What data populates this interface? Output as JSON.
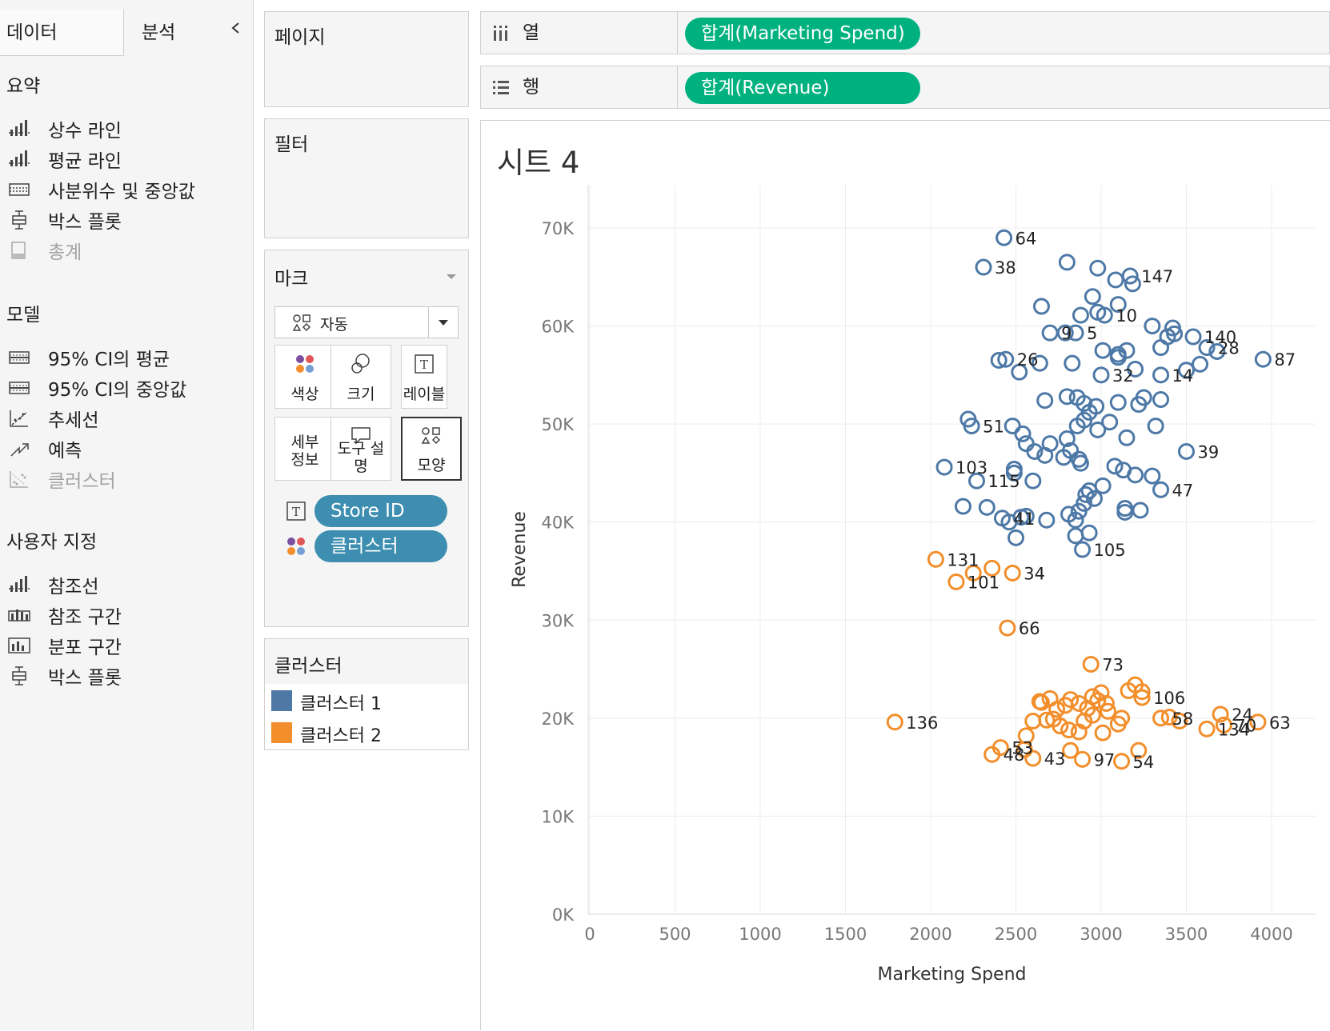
{
  "left_pane": {
    "tab_data": "데이터",
    "tab_analysis": "분석",
    "sections": [
      {
        "title": "요약",
        "items": [
          {
            "label": "상수 라인",
            "icon": "bar-line-icon",
            "enabled": true
          },
          {
            "label": "평균 라인",
            "icon": "bar-line-icon",
            "enabled": true
          },
          {
            "label": "사분위수 및 중앙값",
            "icon": "quartile-icon",
            "enabled": true
          },
          {
            "label": "박스 플롯",
            "icon": "box-plot-icon",
            "enabled": true
          },
          {
            "label": "총계",
            "icon": "totals-icon",
            "enabled": false
          }
        ]
      },
      {
        "title": "모델",
        "items": [
          {
            "label": "95% CI의 평균",
            "icon": "ci-icon",
            "enabled": true
          },
          {
            "label": "95% CI의 중앙값",
            "icon": "ci-icon",
            "enabled": true
          },
          {
            "label": "추세선",
            "icon": "trend-line-icon",
            "enabled": true
          },
          {
            "label": "예측",
            "icon": "forecast-icon",
            "enabled": true
          },
          {
            "label": "클러스터",
            "icon": "cluster-icon",
            "enabled": false
          }
        ]
      },
      {
        "title": "사용자 지정",
        "items": [
          {
            "label": "참조선",
            "icon": "reference-line-icon",
            "enabled": true
          },
          {
            "label": "참조 구간",
            "icon": "reference-band-icon",
            "enabled": true
          },
          {
            "label": "분포 구간",
            "icon": "distribution-band-icon",
            "enabled": true
          },
          {
            "label": "박스 플롯",
            "icon": "box-plot-icon",
            "enabled": true
          }
        ]
      }
    ]
  },
  "cards": {
    "pages_title": "페이지",
    "filters_title": "필터",
    "marks": {
      "title": "마크",
      "mark_type": "자동",
      "buttons": [
        {
          "label": "색상",
          "icon": "color-icon"
        },
        {
          "label": "크기",
          "icon": "size-icon"
        },
        {
          "label": "레이블",
          "icon": "label-icon"
        },
        {
          "label": "세부\n정보",
          "icon": "detail-icon"
        },
        {
          "label": "도구 설명",
          "icon": "tooltip-icon"
        },
        {
          "label": "모양",
          "icon": "shape-icon"
        }
      ],
      "pills": [
        {
          "label": "Store ID",
          "icon": "label-icon"
        },
        {
          "label": "클러스터",
          "icon": "color-icon"
        }
      ]
    },
    "legend": {
      "title": "클러스터",
      "items": [
        {
          "label": "클러스터 1",
          "color": "#4e79a7"
        },
        {
          "label": "클러스터 2",
          "color": "#f28e2b"
        }
      ]
    }
  },
  "shelves": {
    "columns_label": "열",
    "columns_pill": "합계(Marketing Spend)",
    "rows_label": "행",
    "rows_pill": "합계(Revenue)",
    "pill_color": "#00b180"
  },
  "sheet": {
    "title": "시트 4"
  },
  "chart_data": {
    "type": "scatter",
    "xlabel": "Marketing Spend",
    "ylabel": "Revenue",
    "xlim": [
      0,
      4000
    ],
    "ylim": [
      0,
      70000
    ],
    "x_ticks": [
      "0",
      "500",
      "1000",
      "1500",
      "2000",
      "2500",
      "3000",
      "3500",
      "4000"
    ],
    "y_ticks": [
      "0K",
      "10K",
      "20K",
      "30K",
      "40K",
      "50K",
      "60K",
      "70K"
    ],
    "grid": true,
    "series": [
      {
        "name": "클러스터 1",
        "color": "#4e79a7",
        "points": [
          {
            "x": 2430,
            "y": 69000,
            "label": "64"
          },
          {
            "x": 2800,
            "y": 66500
          },
          {
            "x": 2980,
            "y": 65900
          },
          {
            "x": 3170,
            "y": 65100,
            "label": "147"
          },
          {
            "x": 2310,
            "y": 66000,
            "label": "38"
          },
          {
            "x": 3085,
            "y": 64700
          },
          {
            "x": 3185,
            "y": 64300
          },
          {
            "x": 2950,
            "y": 63000
          },
          {
            "x": 2980,
            "y": 61400
          },
          {
            "x": 3020,
            "y": 61100,
            "label": "10"
          },
          {
            "x": 3100,
            "y": 62200
          },
          {
            "x": 2650,
            "y": 62000
          },
          {
            "x": 2790,
            "y": 59300
          },
          {
            "x": 2880,
            "y": 61100
          },
          {
            "x": 3300,
            "y": 60000
          },
          {
            "x": 3420,
            "y": 59800
          },
          {
            "x": 3540,
            "y": 58900,
            "label": "140"
          },
          {
            "x": 3430,
            "y": 59200
          },
          {
            "x": 3390,
            "y": 58900
          },
          {
            "x": 3950,
            "y": 56600,
            "label": "87"
          },
          {
            "x": 3680,
            "y": 57400
          },
          {
            "x": 3580,
            "y": 56100
          },
          {
            "x": 3350,
            "y": 57800
          },
          {
            "x": 3150,
            "y": 57500
          },
          {
            "x": 3010,
            "y": 57500
          },
          {
            "x": 3100,
            "y": 57100
          },
          {
            "x": 3100,
            "y": 56800
          },
          {
            "x": 2400,
            "y": 56500
          },
          {
            "x": 2520,
            "y": 55300
          },
          {
            "x": 2640,
            "y": 56200
          },
          {
            "x": 2830,
            "y": 56200
          },
          {
            "x": 3200,
            "y": 55600
          },
          {
            "x": 3500,
            "y": 55500
          },
          {
            "x": 3000,
            "y": 55000,
            "label": "32"
          },
          {
            "x": 2670,
            "y": 52400
          },
          {
            "x": 2800,
            "y": 52800
          },
          {
            "x": 2860,
            "y": 52700
          },
          {
            "x": 2900,
            "y": 52100
          },
          {
            "x": 2970,
            "y": 51800
          },
          {
            "x": 3100,
            "y": 52200
          },
          {
            "x": 3250,
            "y": 52700
          },
          {
            "x": 3350,
            "y": 52500
          },
          {
            "x": 2220,
            "y": 50500
          },
          {
            "x": 2240,
            "y": 49800,
            "label": "51"
          },
          {
            "x": 2480,
            "y": 49800
          },
          {
            "x": 2540,
            "y": 49000
          },
          {
            "x": 2560,
            "y": 48000
          },
          {
            "x": 2610,
            "y": 47200
          },
          {
            "x": 2670,
            "y": 46800
          },
          {
            "x": 2700,
            "y": 48000
          },
          {
            "x": 2800,
            "y": 48500
          },
          {
            "x": 2860,
            "y": 49800
          },
          {
            "x": 2900,
            "y": 50400
          },
          {
            "x": 2930,
            "y": 51200
          },
          {
            "x": 2980,
            "y": 49400
          },
          {
            "x": 3050,
            "y": 50200
          },
          {
            "x": 3150,
            "y": 48600
          },
          {
            "x": 3320,
            "y": 49800
          },
          {
            "x": 3080,
            "y": 45700
          },
          {
            "x": 3130,
            "y": 45300
          },
          {
            "x": 2080,
            "y": 45600,
            "label": "103"
          },
          {
            "x": 2270,
            "y": 44200,
            "label": "115"
          },
          {
            "x": 2490,
            "y": 45400
          },
          {
            "x": 2490,
            "y": 45000
          },
          {
            "x": 2600,
            "y": 44200
          },
          {
            "x": 2780,
            "y": 46600
          },
          {
            "x": 2820,
            "y": 47300
          },
          {
            "x": 2870,
            "y": 46400
          },
          {
            "x": 2880,
            "y": 46000
          },
          {
            "x": 3200,
            "y": 44800
          },
          {
            "x": 3300,
            "y": 44700
          },
          {
            "x": 3350,
            "y": 43300,
            "label": "47"
          },
          {
            "x": 3500,
            "y": 47200,
            "label": "39"
          },
          {
            "x": 2910,
            "y": 42800
          },
          {
            "x": 2930,
            "y": 43200
          },
          {
            "x": 2960,
            "y": 42400
          },
          {
            "x": 3010,
            "y": 43700
          },
          {
            "x": 2900,
            "y": 41900
          },
          {
            "x": 2870,
            "y": 41100
          },
          {
            "x": 2850,
            "y": 40200
          },
          {
            "x": 2810,
            "y": 40800
          },
          {
            "x": 3140,
            "y": 41400
          },
          {
            "x": 3140,
            "y": 41000
          },
          {
            "x": 3230,
            "y": 41200
          },
          {
            "x": 2190,
            "y": 41600
          },
          {
            "x": 2330,
            "y": 41500
          },
          {
            "x": 2420,
            "y": 40400,
            "label": "41"
          },
          {
            "x": 2460,
            "y": 40000
          },
          {
            "x": 2530,
            "y": 40500
          },
          {
            "x": 2560,
            "y": 40600
          },
          {
            "x": 2680,
            "y": 40200
          },
          {
            "x": 2500,
            "y": 38400
          },
          {
            "x": 2850,
            "y": 38600
          },
          {
            "x": 2930,
            "y": 38900
          },
          {
            "x": 2890,
            "y": 37200,
            "label": "105"
          },
          {
            "x": 3220,
            "y": 52000
          },
          {
            "x": 3350,
            "y": 55000,
            "label": "14"
          },
          {
            "x": 2700,
            "y": 59300,
            "label": "9"
          },
          {
            "x": 2850,
            "y": 59300,
            "label": "5"
          },
          {
            "x": 2440,
            "y": 56600,
            "label": "26"
          },
          {
            "x": 3620,
            "y": 57800,
            "label": "28"
          }
        ]
      },
      {
        "name": "클러스터 2",
        "color": "#f28e2b",
        "points": [
          {
            "x": 2030,
            "y": 36200,
            "label": "131"
          },
          {
            "x": 2150,
            "y": 33900,
            "label": "101"
          },
          {
            "x": 2250,
            "y": 34800
          },
          {
            "x": 2360,
            "y": 35300
          },
          {
            "x": 2480,
            "y": 34800,
            "label": "34"
          },
          {
            "x": 2450,
            "y": 29200,
            "label": "66"
          },
          {
            "x": 2940,
            "y": 25500,
            "label": "73"
          },
          {
            "x": 1790,
            "y": 19600,
            "label": "136"
          },
          {
            "x": 2360,
            "y": 16300,
            "label": "48"
          },
          {
            "x": 2410,
            "y": 17000,
            "label": "53"
          },
          {
            "x": 2550,
            "y": 16800
          },
          {
            "x": 2600,
            "y": 15900,
            "label": "43"
          },
          {
            "x": 2820,
            "y": 16700
          },
          {
            "x": 2890,
            "y": 15800,
            "label": "97"
          },
          {
            "x": 3120,
            "y": 15600,
            "label": "54"
          },
          {
            "x": 3220,
            "y": 16700
          },
          {
            "x": 2560,
            "y": 18200
          },
          {
            "x": 2600,
            "y": 19700
          },
          {
            "x": 2640,
            "y": 21700
          },
          {
            "x": 2700,
            "y": 22000
          },
          {
            "x": 2740,
            "y": 20900
          },
          {
            "x": 2790,
            "y": 21300
          },
          {
            "x": 2820,
            "y": 21900
          },
          {
            "x": 2680,
            "y": 19800
          },
          {
            "x": 2760,
            "y": 19200
          },
          {
            "x": 2870,
            "y": 18600
          },
          {
            "x": 2900,
            "y": 19700
          },
          {
            "x": 2950,
            "y": 20300
          },
          {
            "x": 2980,
            "y": 21800
          },
          {
            "x": 3000,
            "y": 22600
          },
          {
            "x": 3040,
            "y": 20700
          },
          {
            "x": 3010,
            "y": 18500
          },
          {
            "x": 3100,
            "y": 19400
          },
          {
            "x": 3120,
            "y": 20000
          },
          {
            "x": 3160,
            "y": 22800
          },
          {
            "x": 3200,
            "y": 23400
          },
          {
            "x": 3240,
            "y": 22700
          },
          {
            "x": 2870,
            "y": 21500
          },
          {
            "x": 2920,
            "y": 21000
          },
          {
            "x": 2810,
            "y": 18800
          },
          {
            "x": 2720,
            "y": 19900
          },
          {
            "x": 2650,
            "y": 21600
          },
          {
            "x": 2950,
            "y": 22200
          },
          {
            "x": 3030,
            "y": 21500
          },
          {
            "x": 3350,
            "y": 20000,
            "label": "58"
          },
          {
            "x": 3400,
            "y": 20100
          },
          {
            "x": 3460,
            "y": 19700
          },
          {
            "x": 3620,
            "y": 18900,
            "label": "134"
          },
          {
            "x": 3720,
            "y": 19300,
            "label": "70"
          },
          {
            "x": 3700,
            "y": 20400,
            "label": "24"
          },
          {
            "x": 3920,
            "y": 19600,
            "label": "63"
          },
          {
            "x": 3240,
            "y": 22100,
            "label": "106"
          }
        ]
      }
    ]
  }
}
